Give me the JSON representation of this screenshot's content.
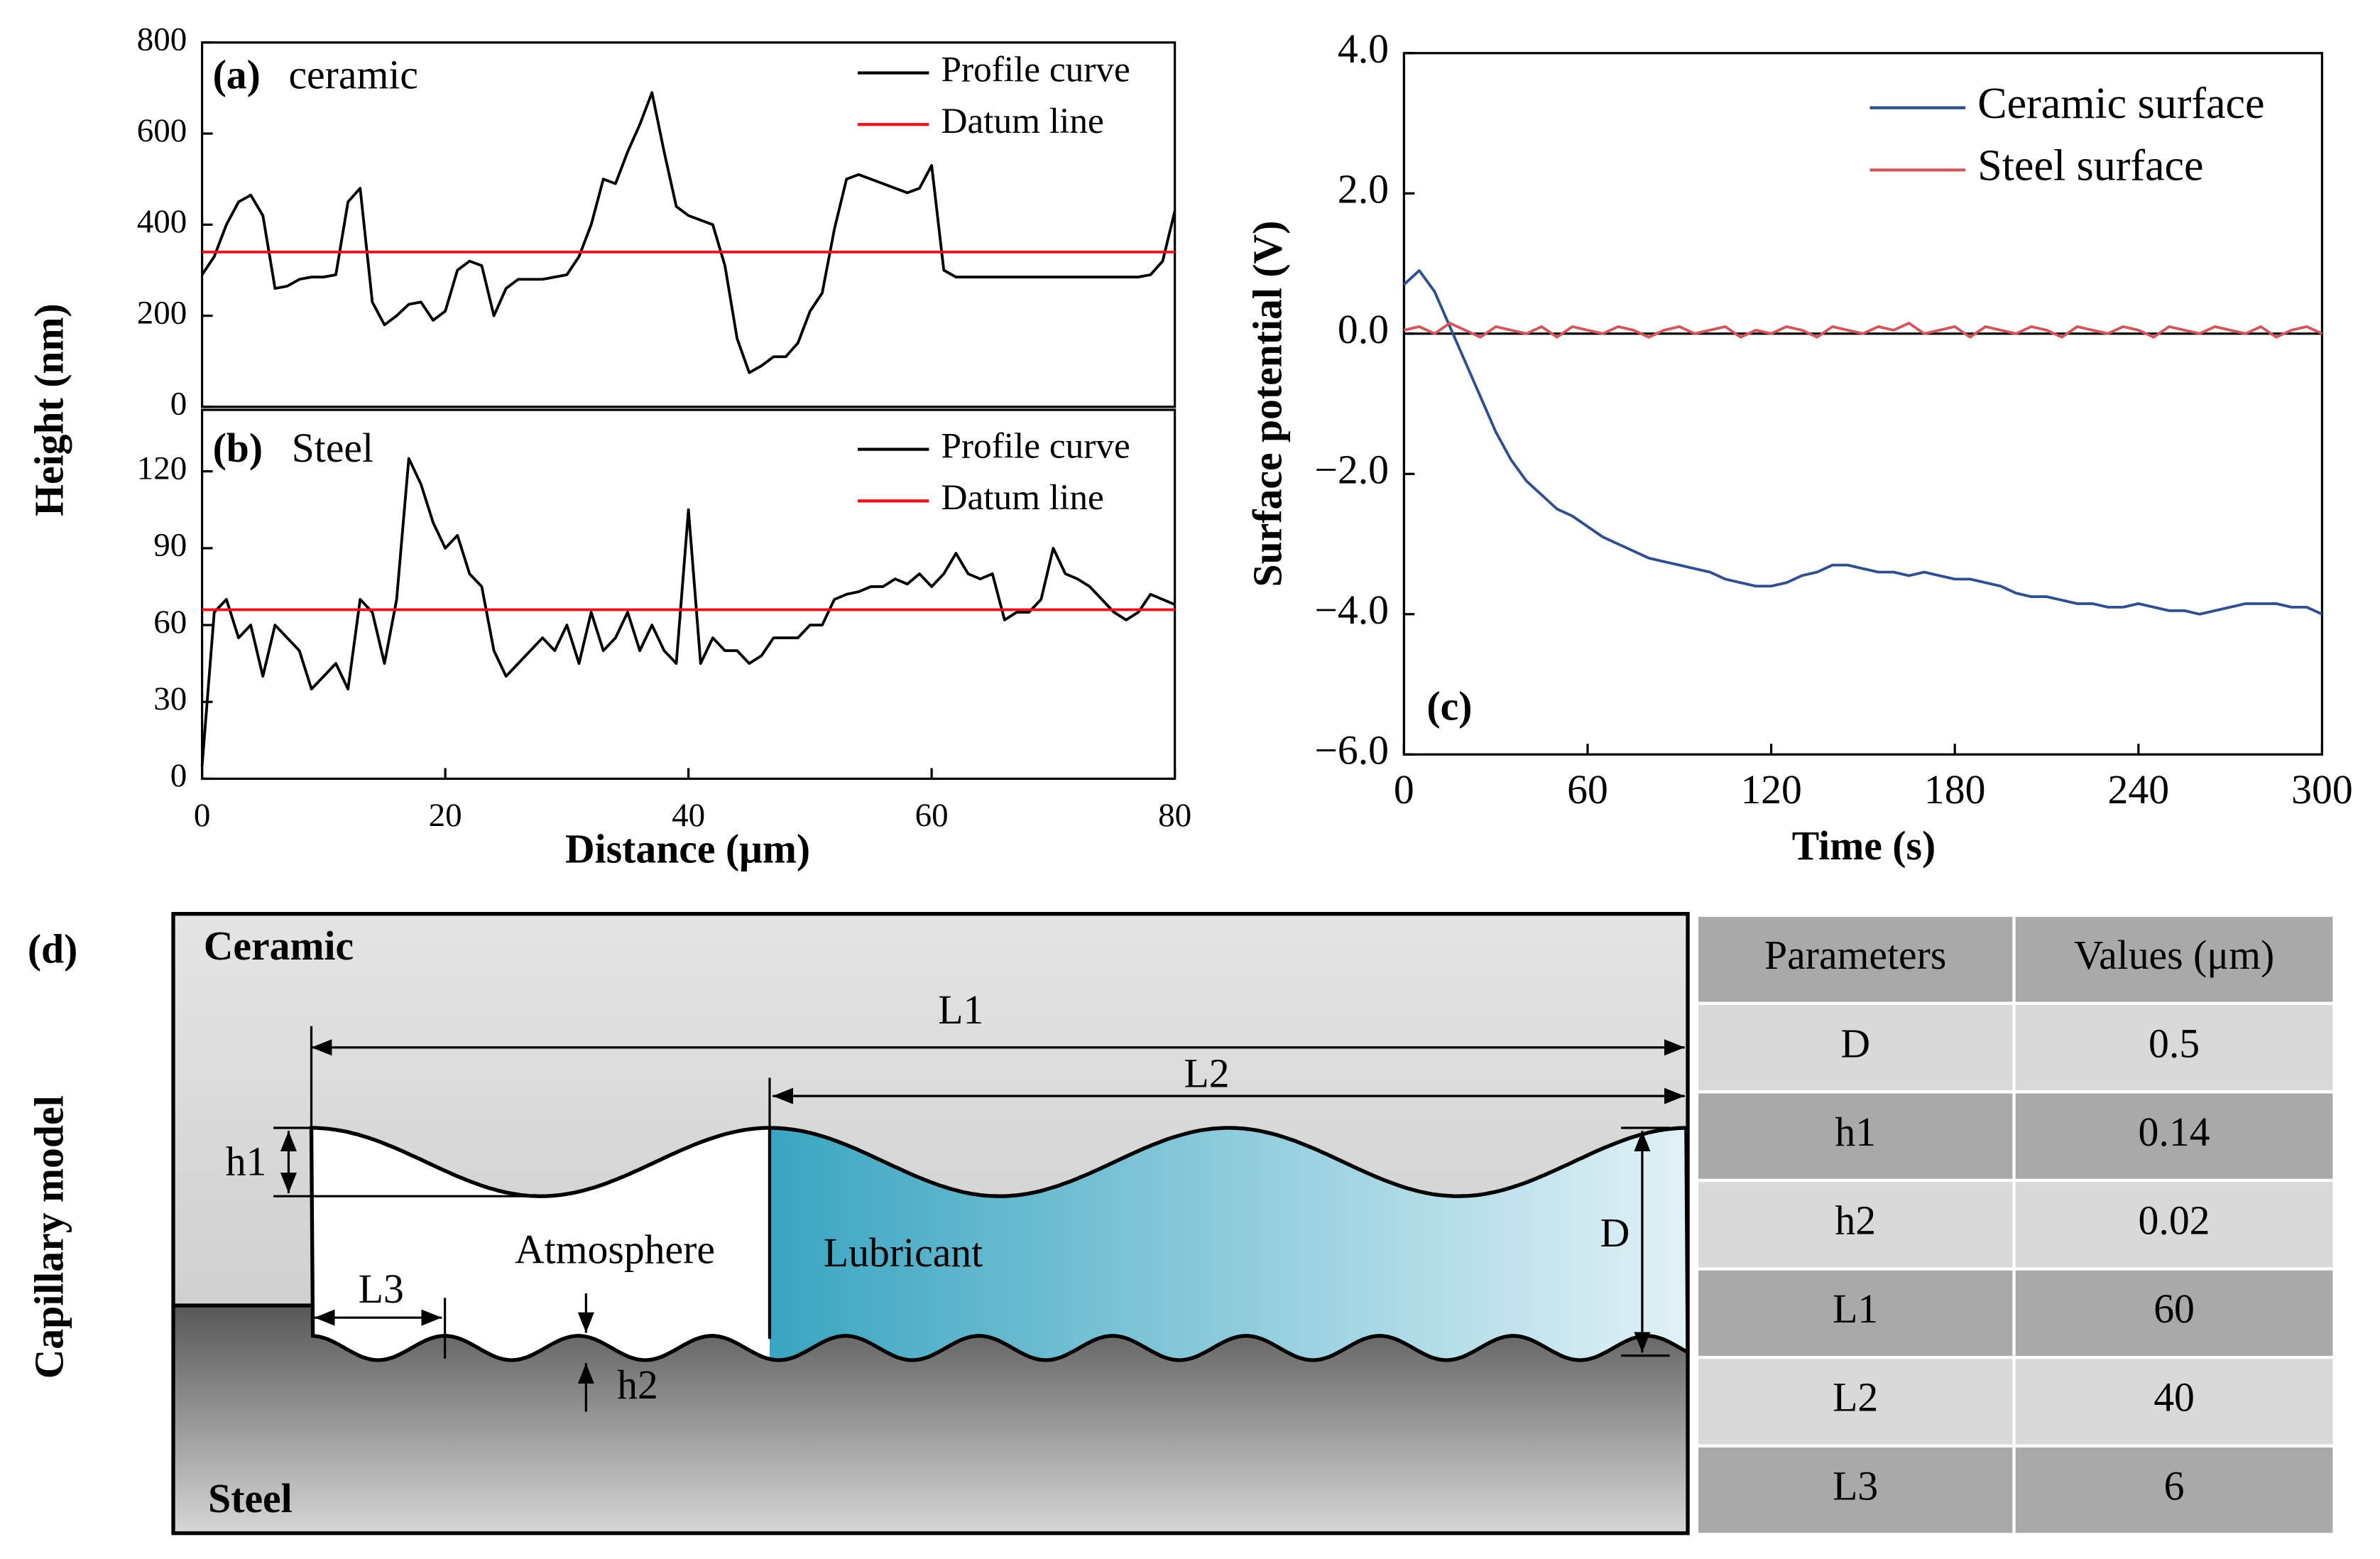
{
  "chart_data": [
    {
      "type": "line",
      "title": "(a)",
      "subtitle": "ceramic",
      "y_label": "Height (nm)",
      "x": [
        0,
        1,
        2,
        3,
        4,
        5,
        6,
        7,
        8,
        9,
        10,
        11,
        12,
        13,
        14,
        15,
        16,
        17,
        18,
        19,
        20,
        21,
        22,
        23,
        24,
        25,
        26,
        27,
        28,
        29,
        30,
        31,
        32,
        33,
        34,
        35,
        36,
        37,
        38,
        39,
        40,
        41,
        42,
        43,
        44,
        45,
        46,
        47,
        48,
        49,
        50,
        51,
        52,
        53,
        54,
        55,
        56,
        57,
        58,
        59,
        60,
        61,
        62,
        63,
        64,
        65,
        66,
        67,
        68,
        69,
        70,
        71,
        72,
        73,
        74,
        75,
        76,
        77,
        78,
        79,
        80
      ],
      "series": [
        {
          "name": "Profile curve",
          "color": "#000000",
          "values": [
            290,
            330,
            400,
            450,
            465,
            420,
            260,
            265,
            280,
            285,
            285,
            290,
            450,
            480,
            230,
            180,
            200,
            225,
            230,
            190,
            210,
            300,
            320,
            310,
            200,
            260,
            280,
            280,
            280,
            285,
            290,
            330,
            400,
            500,
            490,
            560,
            620,
            690,
            560,
            440,
            420,
            410,
            400,
            310,
            150,
            75,
            90,
            110,
            110,
            140,
            210,
            250,
            390,
            500,
            510,
            500,
            490,
            480,
            470,
            480,
            530,
            300,
            285,
            285,
            285,
            285,
            285,
            285,
            285,
            285,
            285,
            285,
            285,
            285,
            285,
            285,
            285,
            285,
            290,
            320,
            430
          ]
        }
      ],
      "reference_lines": [
        {
          "name": "Datum line",
          "color": "#e8141c",
          "value": 340
        }
      ],
      "xlim": [
        0,
        80
      ],
      "ylim": [
        0,
        800
      ],
      "yticks": [
        0,
        200,
        400,
        600,
        800
      ]
    },
    {
      "type": "line",
      "title": "(b)",
      "subtitle": "Steel",
      "x_label": "Distance (μm)",
      "x": [
        0,
        1,
        2,
        3,
        4,
        5,
        6,
        7,
        8,
        9,
        10,
        11,
        12,
        13,
        14,
        15,
        16,
        17,
        18,
        19,
        20,
        21,
        22,
        23,
        24,
        25,
        26,
        27,
        28,
        29,
        30,
        31,
        32,
        33,
        34,
        35,
        36,
        37,
        38,
        39,
        40,
        41,
        42,
        43,
        44,
        45,
        46,
        47,
        48,
        49,
        50,
        51,
        52,
        53,
        54,
        55,
        56,
        57,
        58,
        59,
        60,
        61,
        62,
        63,
        64,
        65,
        66,
        67,
        68,
        69,
        70,
        71,
        72,
        73,
        74,
        75,
        76,
        77,
        78,
        79,
        80
      ],
      "series": [
        {
          "name": "Profile curve",
          "color": "#000000",
          "values": [
            5,
            65,
            70,
            55,
            60,
            40,
            60,
            55,
            50,
            35,
            40,
            45,
            35,
            70,
            65,
            45,
            70,
            125,
            115,
            100,
            90,
            95,
            80,
            75,
            50,
            40,
            45,
            50,
            55,
            50,
            60,
            45,
            65,
            50,
            55,
            65,
            50,
            60,
            50,
            45,
            105,
            45,
            55,
            50,
            50,
            45,
            48,
            55,
            55,
            55,
            60,
            60,
            70,
            72,
            73,
            75,
            75,
            78,
            76,
            80,
            75,
            80,
            88,
            80,
            78,
            80,
            62,
            65,
            65,
            70,
            90,
            80,
            78,
            75,
            70,
            65,
            62,
            65,
            72,
            70,
            68
          ]
        }
      ],
      "reference_lines": [
        {
          "name": "Datum line",
          "color": "#e8141c",
          "value": 66
        }
      ],
      "xlim": [
        0,
        80
      ],
      "xticks": [
        0,
        20,
        40,
        60,
        80
      ],
      "ylim": [
        0,
        144
      ],
      "yticks": [
        0,
        30,
        60,
        90,
        120
      ]
    },
    {
      "type": "line",
      "title": "(c)",
      "x_label": "Time (s)",
      "y_label": "Surface potential (V)",
      "zero_line": true,
      "x": [
        0,
        5,
        10,
        15,
        20,
        25,
        30,
        35,
        40,
        45,
        50,
        55,
        60,
        65,
        70,
        75,
        80,
        85,
        90,
        95,
        100,
        105,
        110,
        115,
        120,
        125,
        130,
        135,
        140,
        145,
        150,
        155,
        160,
        165,
        170,
        175,
        180,
        185,
        190,
        195,
        200,
        205,
        210,
        215,
        220,
        225,
        230,
        235,
        240,
        245,
        250,
        255,
        260,
        265,
        270,
        275,
        280,
        285,
        290,
        295,
        300
      ],
      "series": [
        {
          "name": "Ceramic surface",
          "color": "#2f4f8f",
          "values": [
            0.7,
            0.9,
            0.6,
            0.1,
            -0.4,
            -0.9,
            -1.4,
            -1.8,
            -2.1,
            -2.3,
            -2.5,
            -2.6,
            -2.75,
            -2.9,
            -3.0,
            -3.1,
            -3.2,
            -3.25,
            -3.3,
            -3.35,
            -3.4,
            -3.5,
            -3.55,
            -3.6,
            -3.6,
            -3.55,
            -3.45,
            -3.4,
            -3.3,
            -3.3,
            -3.35,
            -3.4,
            -3.4,
            -3.45,
            -3.4,
            -3.45,
            -3.5,
            -3.5,
            -3.55,
            -3.6,
            -3.7,
            -3.75,
            -3.75,
            -3.8,
            -3.85,
            -3.85,
            -3.9,
            -3.9,
            -3.85,
            -3.9,
            -3.95,
            -3.95,
            -4.0,
            -3.95,
            -3.9,
            -3.85,
            -3.85,
            -3.85,
            -3.9,
            -3.9,
            -4.0
          ]
        },
        {
          "name": "Steel surface",
          "color": "#d0565c",
          "values": [
            0.05,
            0.1,
            0.0,
            0.15,
            0.05,
            -0.05,
            0.1,
            0.05,
            0.0,
            0.1,
            -0.05,
            0.1,
            0.05,
            0.0,
            0.1,
            0.05,
            -0.05,
            0.05,
            0.1,
            0.0,
            0.05,
            0.1,
            -0.05,
            0.05,
            0.0,
            0.1,
            0.05,
            -0.05,
            0.1,
            0.05,
            0.0,
            0.1,
            0.05,
            0.15,
            0.0,
            0.05,
            0.1,
            -0.05,
            0.1,
            0.05,
            0.0,
            0.1,
            0.05,
            -0.05,
            0.1,
            0.05,
            0.0,
            0.1,
            0.05,
            -0.05,
            0.1,
            0.05,
            0.0,
            0.1,
            0.05,
            0.0,
            0.1,
            -0.05,
            0.05,
            0.1,
            0.0
          ]
        }
      ],
      "xlim": [
        0,
        300
      ],
      "xticks": [
        0,
        60,
        120,
        180,
        240,
        300
      ],
      "ylim": [
        -6,
        4
      ],
      "yticks": [
        {
          "value": -6,
          "label": "−6.0"
        },
        {
          "value": -4,
          "label": "−4.0"
        },
        {
          "value": -2,
          "label": "−2.0"
        },
        {
          "value": 0,
          "label": "0.0"
        },
        {
          "value": 2,
          "label": "2.0"
        },
        {
          "value": 4,
          "label": "4.0"
        }
      ]
    }
  ],
  "diagram": {
    "label": "(d)",
    "title": "Capillary model",
    "top": "Ceramic",
    "bottom": "Steel",
    "gap": "Atmosphere",
    "fluid": "Lubricant",
    "dimensions": {
      "L1": "L1",
      "L2": "L2",
      "L3": "L3",
      "h1": "h1",
      "h2": "h2",
      "D": "D"
    }
  },
  "table": {
    "header": [
      "Parameters",
      "Values (μm)"
    ],
    "rows": [
      [
        "D",
        0.5
      ],
      [
        "h1",
        0.14
      ],
      [
        "h2",
        0.02
      ],
      [
        "L1",
        60
      ],
      [
        "L2",
        40
      ],
      [
        "L3",
        6
      ]
    ]
  }
}
